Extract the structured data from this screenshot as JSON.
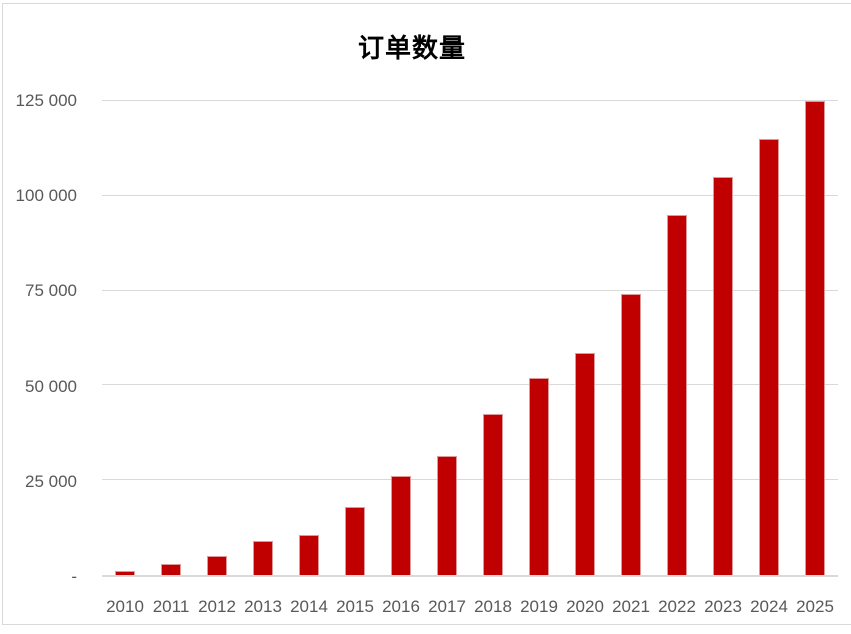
{
  "chart_data": {
    "type": "bar",
    "title": "订单数量",
    "categories": [
      "2010",
      "2011",
      "2012",
      "2013",
      "2014",
      "2015",
      "2016",
      "2017",
      "2018",
      "2019",
      "2020",
      "2021",
      "2022",
      "2023",
      "2024",
      "2025"
    ],
    "values": [
      1000,
      3000,
      5000,
      9000,
      10500,
      18000,
      26000,
      31500,
      42500,
      52000,
      58500,
      74000,
      95000,
      105000,
      115000,
      125000
    ],
    "xlabel": "",
    "ylabel": "",
    "ylim": [
      0,
      125000
    ],
    "grid": true,
    "legend": null,
    "y_ticks": [
      {
        "value": 0,
        "label": "-"
      },
      {
        "value": 25000,
        "label": "25 000"
      },
      {
        "value": 50000,
        "label": "50 000"
      },
      {
        "value": 75000,
        "label": "75 000"
      },
      {
        "value": 100000,
        "label": "100 000"
      },
      {
        "value": 125000,
        "label": "125 000"
      }
    ],
    "colors": {
      "bar": "#c00000",
      "bar_border": "#dd9a9a",
      "gridline": "#d9d9d9",
      "axis_text": "#595959",
      "title_text": "#000000",
      "frame_border": "#d9d9d9",
      "background": "#ffffff"
    }
  }
}
